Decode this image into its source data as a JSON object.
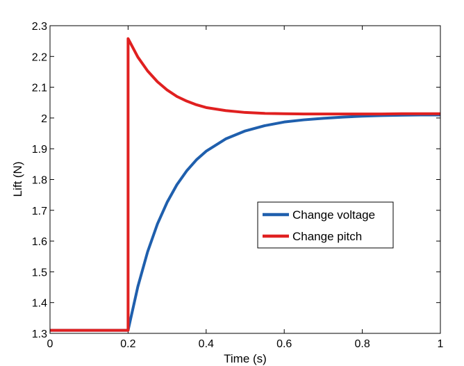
{
  "chart_data": {
    "type": "line",
    "title": "",
    "xlabel": "Time (s)",
    "ylabel": "Lift (N)",
    "xlim": [
      0,
      1
    ],
    "ylim": [
      1.3,
      2.3
    ],
    "x_ticks": [
      0,
      0.2,
      0.4,
      0.6,
      0.8,
      1
    ],
    "x_tick_labels": [
      "0",
      "0.2",
      "0.4",
      "0.6",
      "0.8",
      "1"
    ],
    "y_ticks": [
      1.3,
      1.4,
      1.5,
      1.6,
      1.7,
      1.8,
      1.9,
      2.0,
      2.1,
      2.2,
      2.3
    ],
    "y_tick_labels": [
      "1.3",
      "1.4",
      "1.5",
      "1.6",
      "1.7",
      "1.8",
      "1.9",
      "2",
      "2.1",
      "2.2",
      "2.3"
    ],
    "grid": false,
    "legend_position": "center-right",
    "series": [
      {
        "name": "Change voltage",
        "color": "#1f5fad",
        "x": [
          0,
          0.2,
          0.2,
          0.225,
          0.25,
          0.275,
          0.3,
          0.325,
          0.35,
          0.375,
          0.4,
          0.45,
          0.5,
          0.55,
          0.6,
          0.65,
          0.7,
          0.75,
          0.8,
          0.85,
          0.9,
          0.95,
          1.0
        ],
        "y": [
          1.31,
          1.31,
          1.31,
          1.452,
          1.565,
          1.655,
          1.726,
          1.783,
          1.828,
          1.864,
          1.892,
          1.932,
          1.958,
          1.975,
          1.987,
          1.994,
          1.999,
          2.003,
          2.006,
          2.008,
          2.009,
          2.01,
          2.01
        ]
      },
      {
        "name": "Change pitch",
        "color": "#e02020",
        "x": [
          0,
          0.195,
          0.2,
          0.2,
          0.225,
          0.25,
          0.275,
          0.3,
          0.325,
          0.35,
          0.375,
          0.4,
          0.45,
          0.5,
          0.55,
          0.6,
          0.65,
          0.7,
          0.75,
          0.8,
          0.85,
          0.9,
          0.95,
          1.0
        ],
        "y": [
          1.31,
          1.31,
          1.31,
          2.258,
          2.198,
          2.153,
          2.118,
          2.091,
          2.07,
          2.055,
          2.043,
          2.034,
          2.024,
          2.018,
          2.015,
          2.014,
          2.013,
          2.013,
          2.013,
          2.013,
          2.013,
          2.014,
          2.014,
          2.014
        ]
      }
    ]
  }
}
